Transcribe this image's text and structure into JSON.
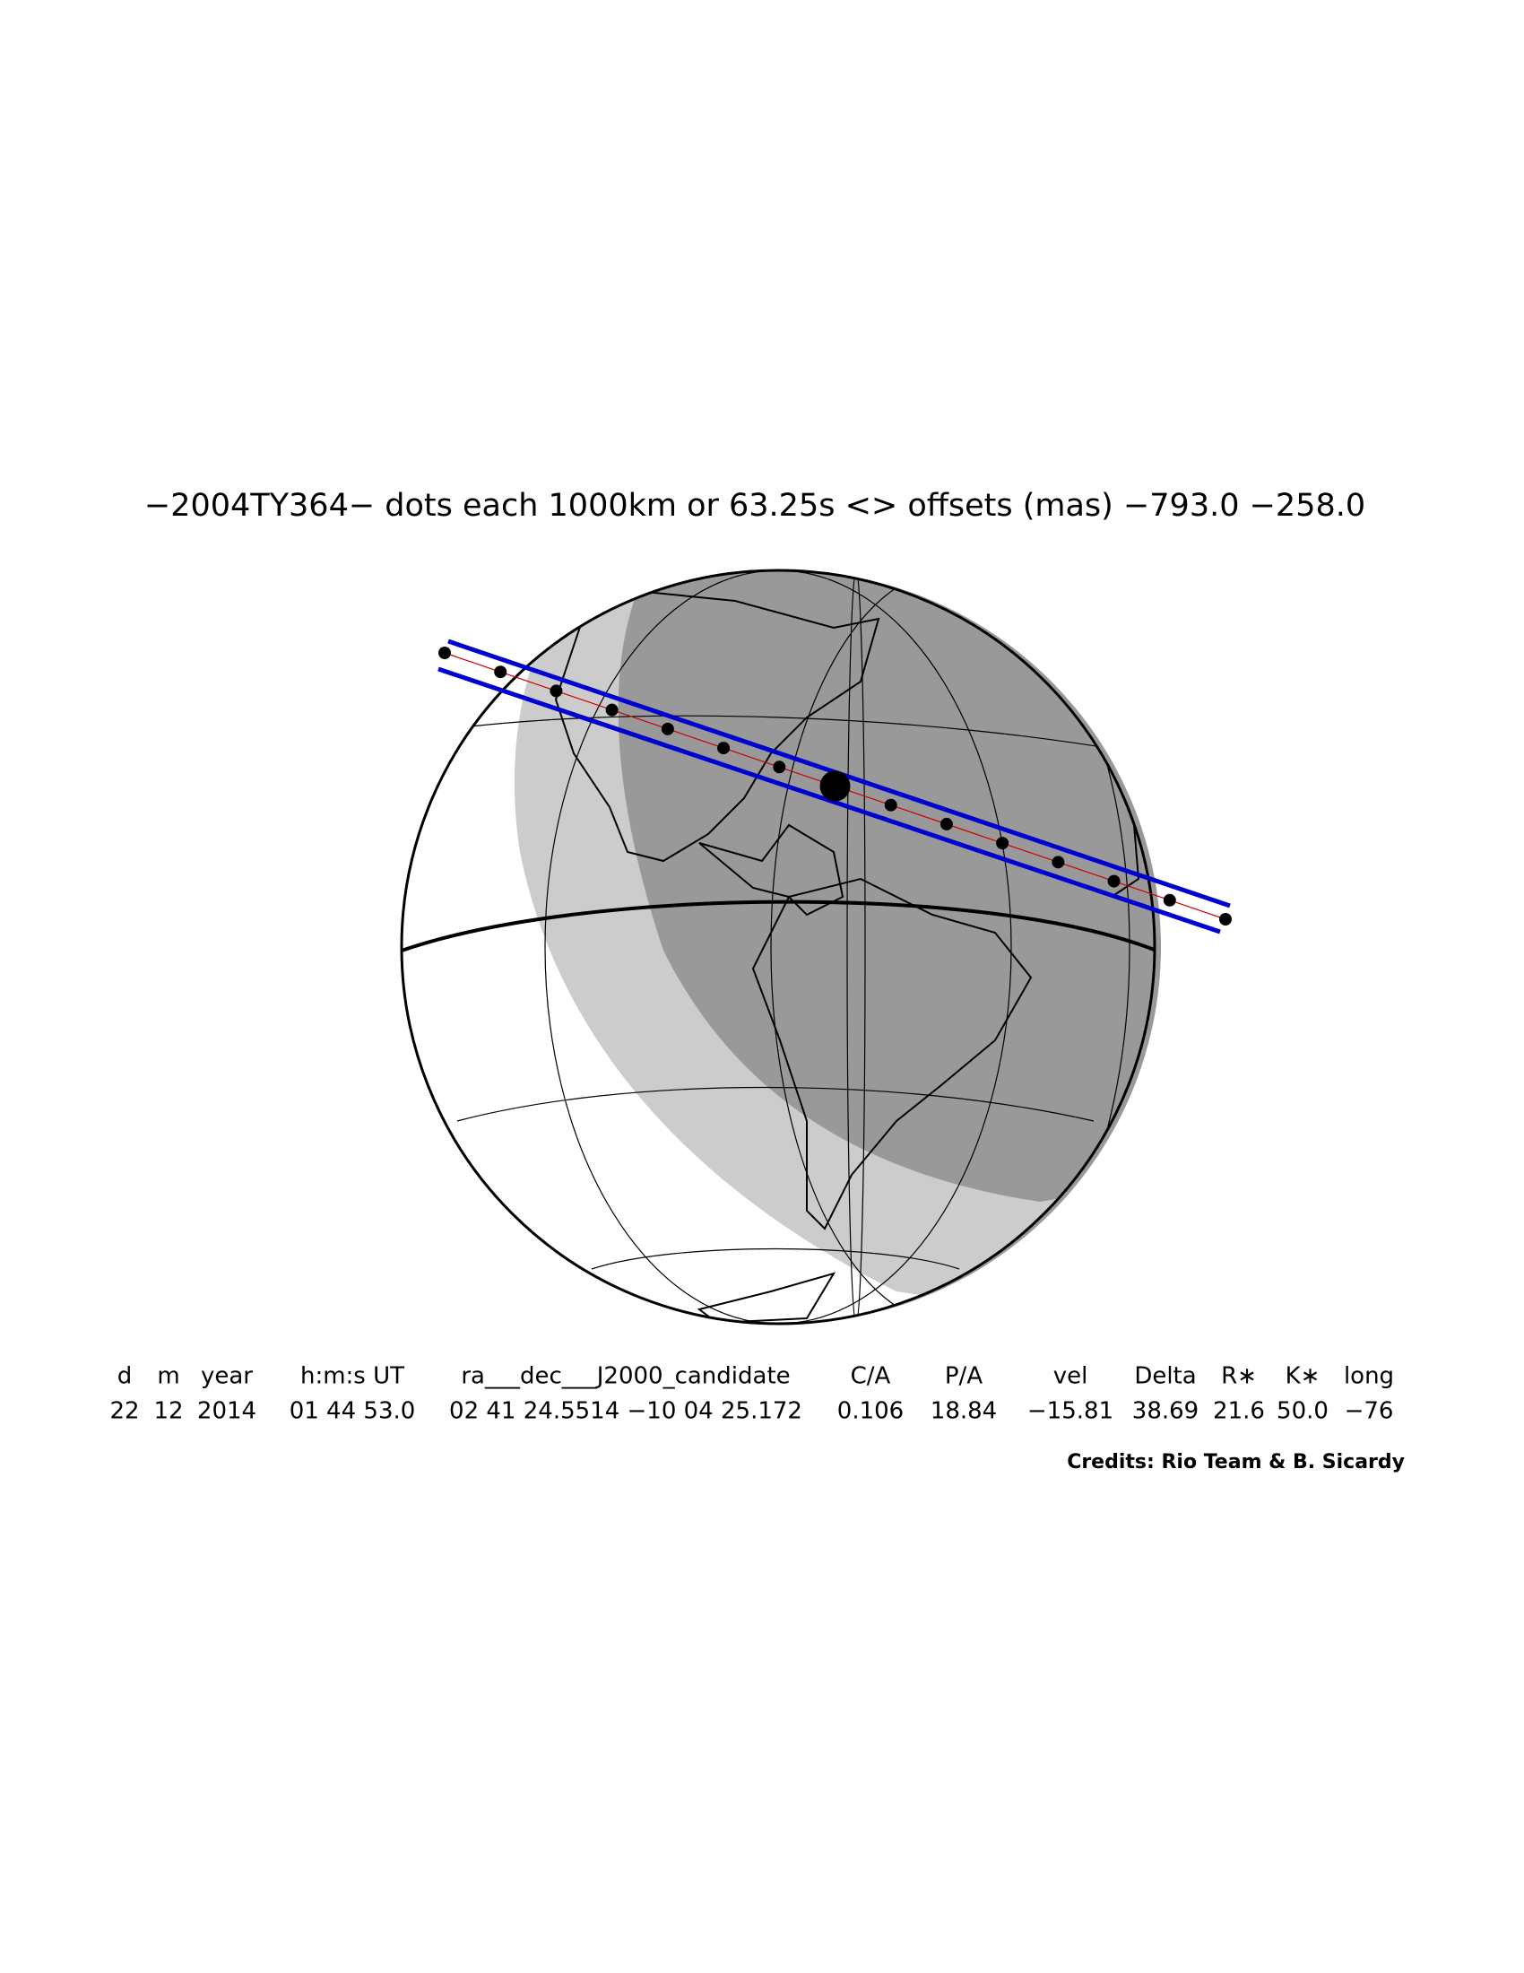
{
  "header": {
    "title": "−2004TY364− dots each 1000km or 63.25s <> offsets (mas) −793.0 −258.0"
  },
  "table": {
    "columns": [
      "d",
      "m",
      "year",
      "h:m:s UT",
      "ra___dec___J2000_candidate",
      "C/A",
      "P/A",
      "vel",
      "Delta",
      "R∗",
      "K∗",
      "long"
    ],
    "rows": [
      [
        "22",
        "12",
        "2014",
        "01 44 53.0",
        "02 41 24.5514 −10 04 25.172",
        "0.106",
        "18.84",
        "−15.81",
        "38.69",
        "21.6",
        "50.0",
        "−76"
      ]
    ]
  },
  "footer": {
    "credits": "Credits: Rio Team & B. Sicardy"
  }
}
